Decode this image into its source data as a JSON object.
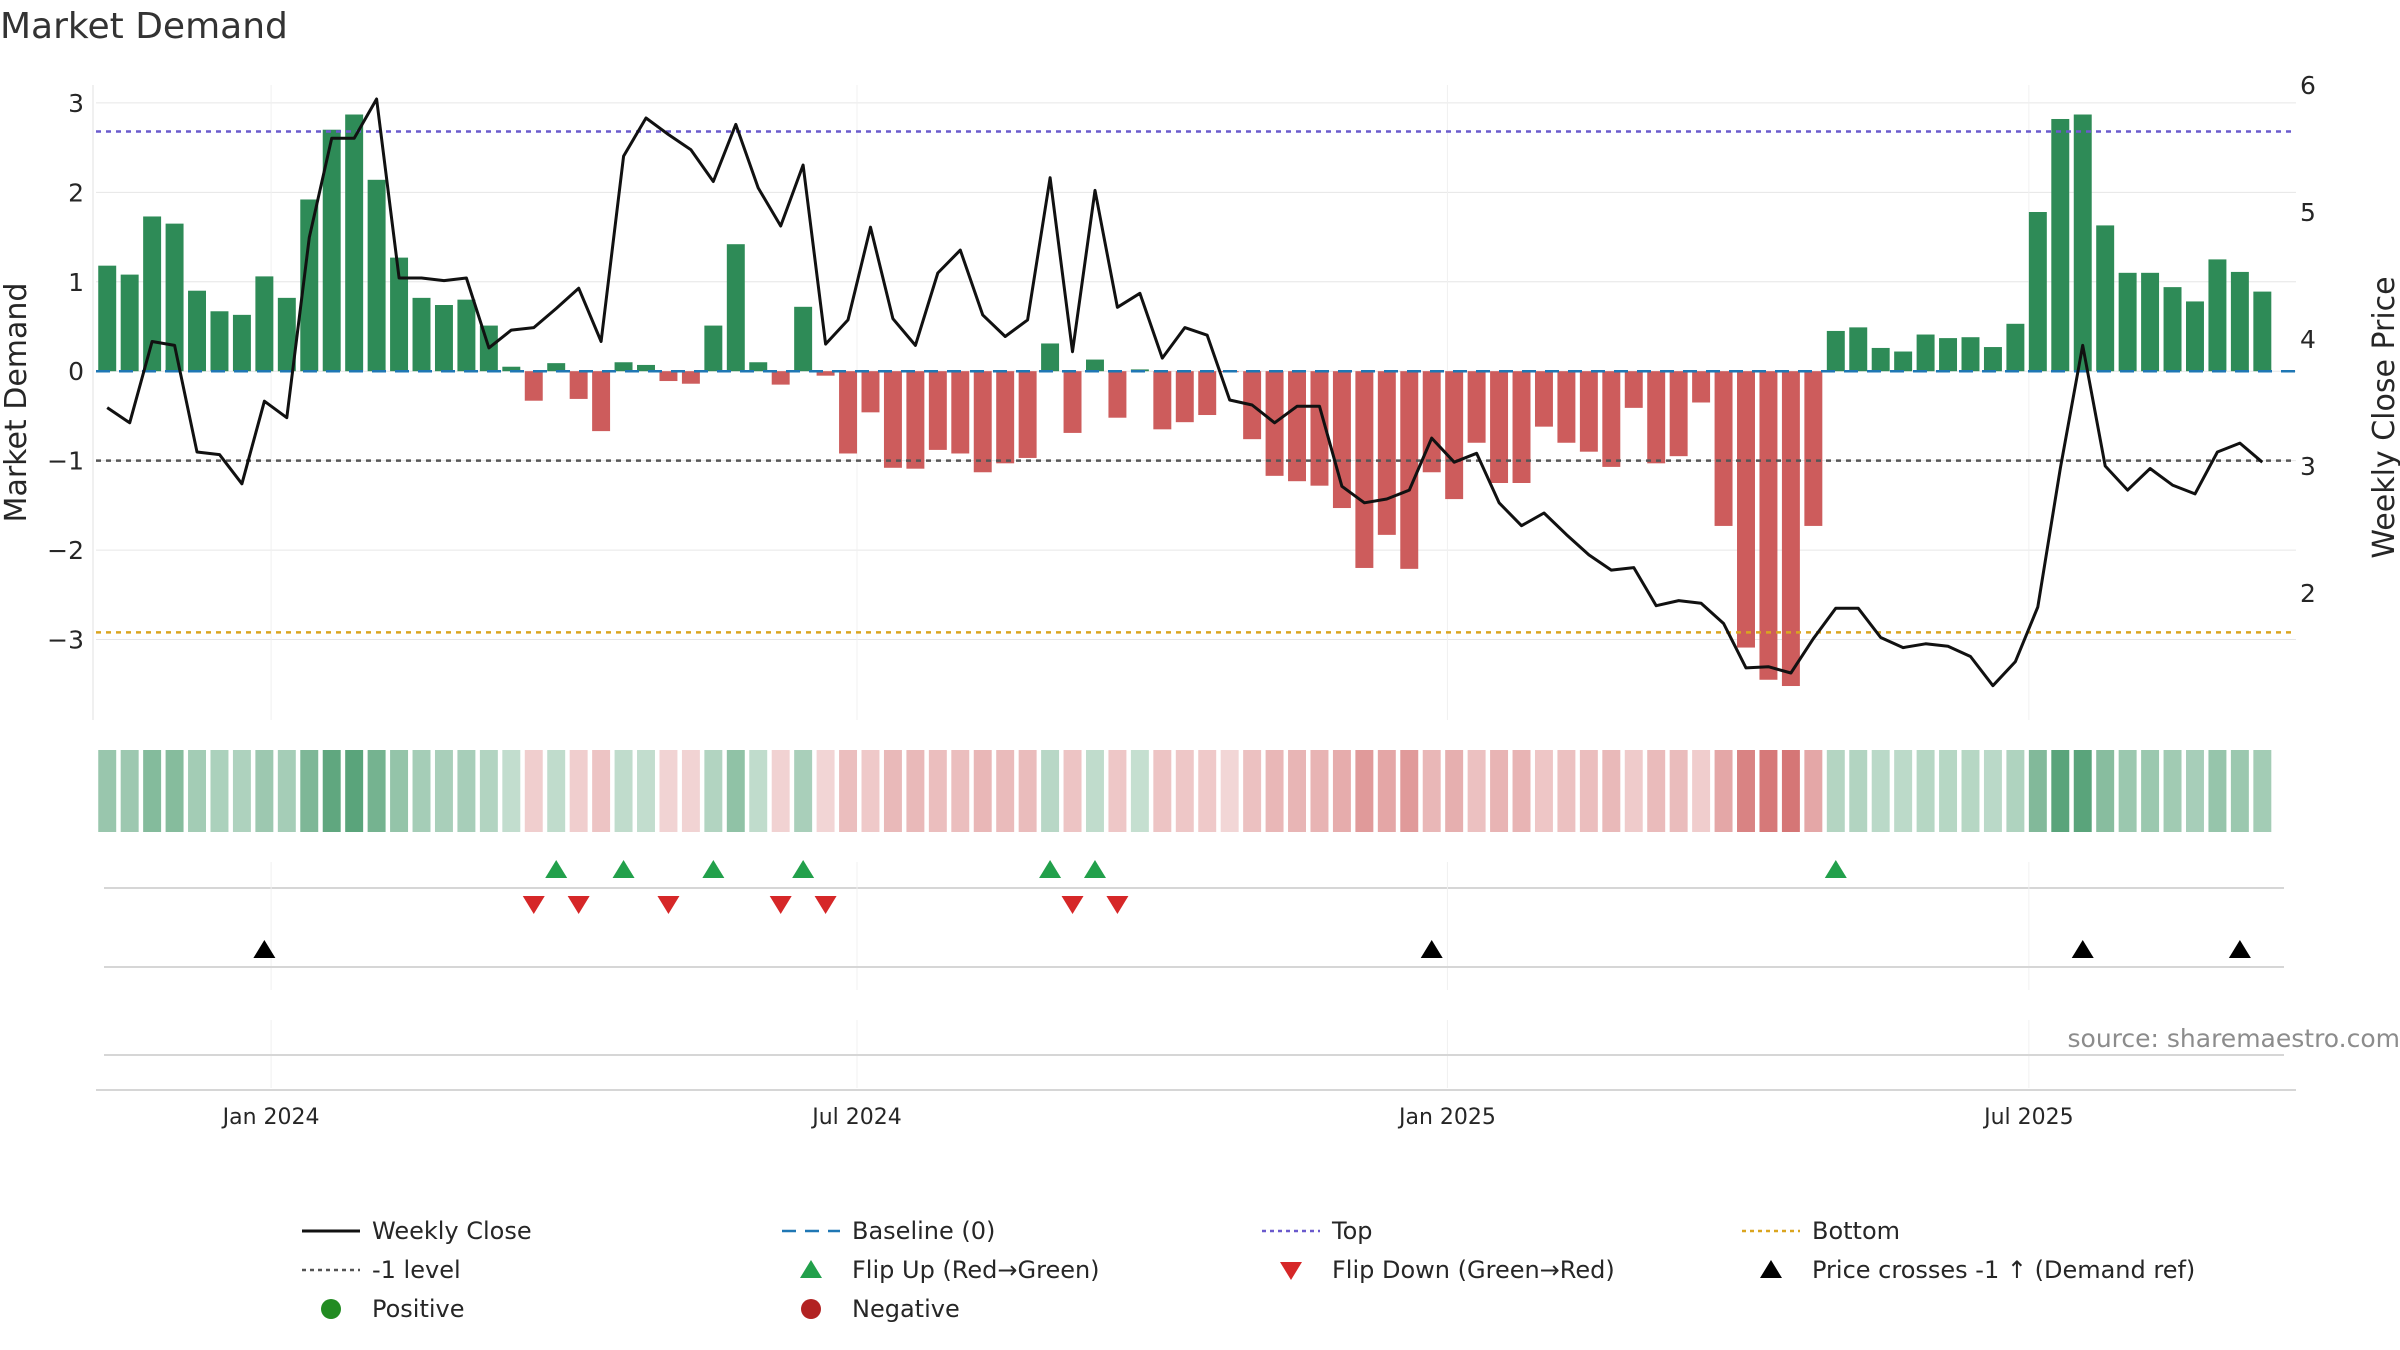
{
  "title": "Market Demand",
  "source": "source: sharemaestro.com",
  "colors": {
    "positive": "#2e8b57",
    "negative": "#cd5c5c",
    "close": "#111111",
    "baseline": "#1f77b4",
    "top": "#6a5acd",
    "bottom": "#daa520",
    "level": "#555555",
    "flip_up": "#22a04b",
    "flip_down": "#d62728",
    "cross": "#000000",
    "grid": "#e6e6e6"
  },
  "chart_data": {
    "type": "bar",
    "title": "Market Demand",
    "xlabel": "",
    "ylabel": "Market Demand",
    "y2label": "Weekly Close Price",
    "ylim": [
      -3.9,
      3.2
    ],
    "y2lim": [
      1.0,
      6.0
    ],
    "yticks": [
      3,
      2,
      1,
      0,
      -1,
      -2,
      -3
    ],
    "ytick_labels": [
      "3",
      "2",
      "1",
      "0",
      "−1",
      "−2",
      "−3"
    ],
    "y2ticks": [
      6,
      5,
      4,
      3,
      2
    ],
    "y2tick_labels": [
      "6",
      "5",
      "4",
      "3",
      "2"
    ],
    "x_start": "2023-11-06",
    "x_step_days": 7,
    "x_axis_range_weeks": [
      -0.5,
      97.5
    ],
    "xticks": [
      {
        "label": "Jan 2024",
        "week": 7.3
      },
      {
        "label": "Jul 2024",
        "week": 33.4
      },
      {
        "label": "Jan 2025",
        "week": 59.7
      },
      {
        "label": "Jul 2025",
        "week": 85.6
      }
    ],
    "series": [
      {
        "name": "Market Demand",
        "kind": "bar",
        "values": [
          1.18,
          1.08,
          1.73,
          1.65,
          0.9,
          0.67,
          0.63,
          1.06,
          0.82,
          1.92,
          2.7,
          2.87,
          2.14,
          1.27,
          0.82,
          0.74,
          0.8,
          0.51,
          0.05,
          -0.33,
          0.09,
          -0.31,
          -0.67,
          0.1,
          0.07,
          -0.11,
          -0.14,
          0.51,
          1.42,
          0.1,
          -0.15,
          0.72,
          -0.05,
          -0.92,
          -0.46,
          -1.08,
          -1.09,
          -0.88,
          -0.92,
          -1.13,
          -1.03,
          -0.97,
          0.31,
          -0.69,
          0.13,
          -0.52,
          0.02,
          -0.65,
          -0.57,
          -0.49,
          -0.01,
          -0.76,
          -1.17,
          -1.23,
          -1.28,
          -1.53,
          -2.2,
          -1.83,
          -2.21,
          -1.13,
          -1.43,
          -0.8,
          -1.25,
          -1.25,
          -0.62,
          -0.8,
          -0.9,
          -1.07,
          -0.41,
          -1.03,
          -0.95,
          -0.35,
          -1.73,
          -3.09,
          -3.45,
          -3.52,
          -1.73,
          0.45,
          0.49,
          0.26,
          0.22,
          0.41,
          0.37,
          0.38,
          0.27,
          0.53,
          1.78,
          2.82,
          2.87,
          1.63,
          1.1,
          1.1,
          0.94,
          0.78,
          1.25,
          1.11,
          0.89
        ]
      },
      {
        "name": "Weekly Close",
        "kind": "line",
        "axis": "right",
        "values": [
          3.46,
          3.34,
          3.98,
          3.95,
          3.11,
          3.09,
          2.86,
          3.51,
          3.38,
          4.8,
          5.58,
          5.58,
          5.89,
          4.48,
          4.48,
          4.46,
          4.48,
          3.93,
          4.07,
          4.09,
          4.24,
          4.4,
          3.98,
          5.44,
          5.74,
          5.61,
          5.49,
          5.24,
          5.69,
          5.19,
          4.89,
          5.37,
          3.96,
          4.15,
          4.88,
          4.16,
          3.95,
          4.52,
          4.7,
          4.19,
          4.02,
          4.15,
          5.27,
          3.9,
          5.17,
          4.25,
          4.36,
          3.85,
          4.09,
          4.03,
          3.52,
          3.48,
          3.34,
          3.47,
          3.47,
          2.84,
          2.71,
          2.74,
          2.81,
          3.22,
          3.03,
          3.1,
          2.71,
          2.53,
          2.63,
          2.46,
          2.3,
          2.18,
          2.2,
          1.9,
          1.94,
          1.92,
          1.76,
          1.41,
          1.42,
          1.37,
          1.64,
          1.88,
          1.88,
          1.65,
          1.57,
          1.6,
          1.58,
          1.5,
          1.27,
          1.46,
          1.89,
          2.98,
          3.95,
          3.0,
          2.81,
          2.98,
          2.85,
          2.78,
          3.11,
          3.18,
          3.03
        ]
      },
      {
        "name": "Baseline (0)",
        "kind": "hline",
        "value": 0
      },
      {
        "name": "Top",
        "kind": "hline",
        "value": 2.68
      },
      {
        "name": "Bottom",
        "kind": "hline",
        "value": -2.92
      },
      {
        "name": "-1 level",
        "kind": "hline",
        "value": -1
      }
    ],
    "flip_up_weeks": [
      20,
      23,
      27,
      31,
      42,
      44,
      77
    ],
    "flip_down_weeks": [
      19,
      21,
      25,
      30,
      32,
      43,
      45
    ],
    "price_cross_weeks": [
      7,
      59,
      88,
      95
    ],
    "legend": [
      {
        "key": "close",
        "label": "Weekly Close"
      },
      {
        "key": "baseline",
        "label": "Baseline (0)"
      },
      {
        "key": "top",
        "label": "Top"
      },
      {
        "key": "bottom",
        "label": "Bottom"
      },
      {
        "key": "level",
        "label": "-1 level"
      },
      {
        "key": "flip_up",
        "label": "Flip Up (Red→Green)"
      },
      {
        "key": "flip_down",
        "label": "Flip Down (Green→Red)"
      },
      {
        "key": "cross",
        "label": "Price crosses -1 ↑ (Demand ref)"
      },
      {
        "key": "positive",
        "label": "Positive"
      },
      {
        "key": "negative",
        "label": "Negative"
      }
    ]
  }
}
